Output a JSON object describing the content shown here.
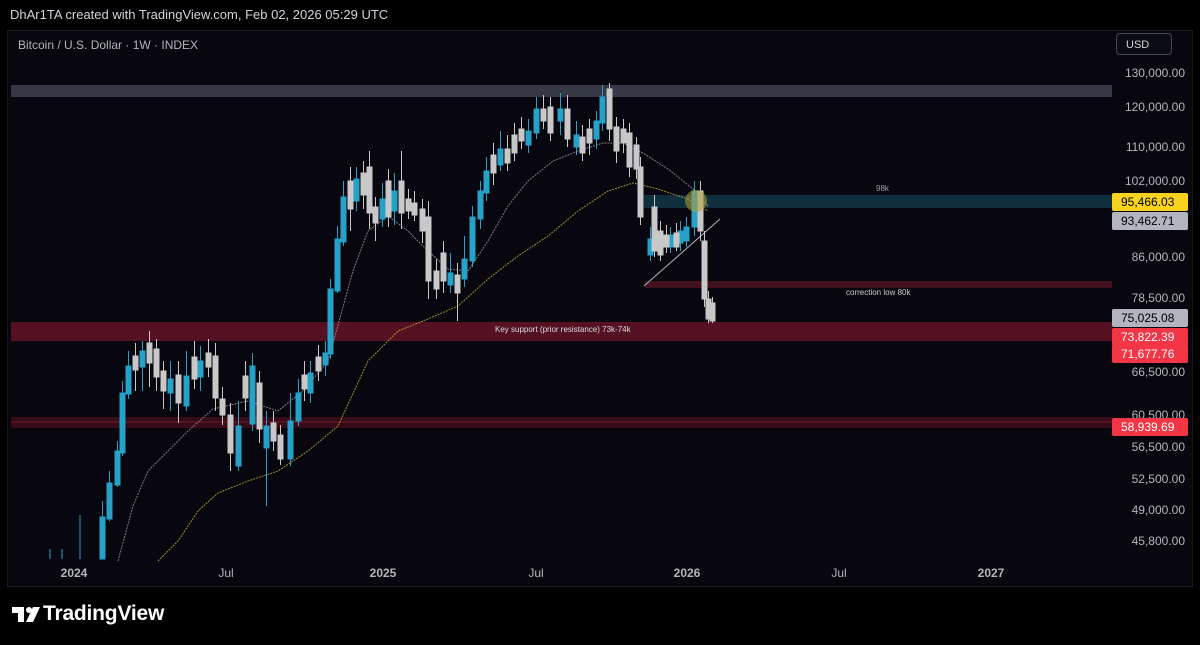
{
  "header": {
    "author_line": "DhAr1TA created with TradingView.com, Feb 02, 2026 05:29 UTC"
  },
  "chart": {
    "symbol_line": "Bitcoin / U.S. Dollar · 1W · INDEX",
    "currency": "USD",
    "background": "#08070f",
    "y_axis_ticks": [
      "130,000.00",
      "120,000.00",
      "110,000.00",
      "102,000.00",
      "86,000.00",
      "78,500.00",
      "66,500.00",
      "60,500.00",
      "56,500.00",
      "52,500.00",
      "49,000.00",
      "45,800.00"
    ],
    "x_axis_ticks": [
      "2024",
      "Jul",
      "2025",
      "Jul",
      "2026",
      "Jul",
      "2027"
    ],
    "price_labels": [
      {
        "value": "95,466.03",
        "bg": "#f7d21e",
        "fg": "#000000"
      },
      {
        "value": "93,462.71",
        "bg": "#b2b5be",
        "fg": "#000000"
      },
      {
        "value": "75,025.08",
        "bg": "#b2b5be",
        "fg": "#000000"
      },
      {
        "value": "73,822.39",
        "bg": "#f23645",
        "fg": "#ffffff"
      },
      {
        "value": "71,677.76",
        "bg": "#f23645",
        "fg": "#ffffff"
      },
      {
        "value": "58,939.69",
        "bg": "#f23645",
        "fg": "#ffffff"
      }
    ],
    "annotations": {
      "zone_98k": "98k",
      "correction_low": "correction low  80k",
      "key_support": "Key support (prior resistance) 73k-74k"
    },
    "colors": {
      "bull_candle": "#26a2c8",
      "bear_candle": "#c8c8c8",
      "support_zone": "#f23645",
      "resistance_zone": "#787b86",
      "ma_yellow": "#d4b93c",
      "ma_white": "#cccccc"
    }
  },
  "footer": {
    "brand": "TradingView",
    "logo": "tradingview-logo-icon"
  }
}
